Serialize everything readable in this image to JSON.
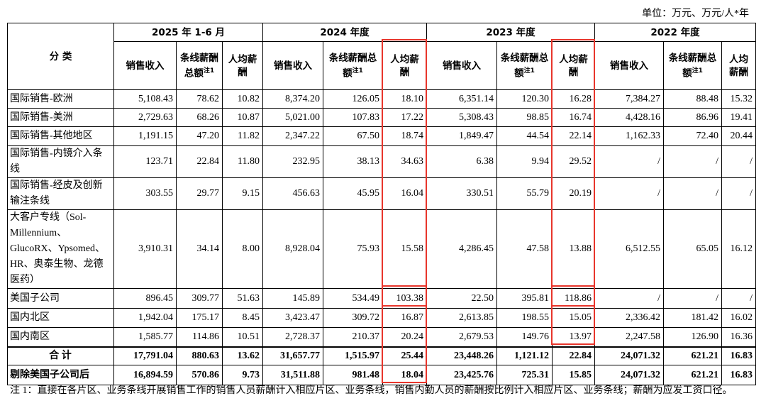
{
  "unit": "单位：万元、万元/人*年",
  "header": {
    "category": "分  类",
    "groups": [
      {
        "title": "2025 年 1-6 月",
        "cols": [
          "销售收入",
          "条线薪酬总额",
          "人均薪酬"
        ],
        "note": "注1"
      },
      {
        "title": "2024 年度",
        "cols": [
          "销售收入",
          "条线薪酬总额",
          "人均薪酬"
        ],
        "note": "注1"
      },
      {
        "title": "2023 年度",
        "cols": [
          "销售收入",
          "条线薪酬总额",
          "人均薪酬"
        ],
        "note": "注1"
      },
      {
        "title": "2022 年度",
        "cols": [
          "销售收入",
          "条线薪酬总额",
          "人均薪酬"
        ],
        "note": "注1"
      }
    ]
  },
  "table": {
    "rows": [
      [
        "国际销售-欧洲",
        "5,108.43",
        "78.62",
        "10.82",
        "8,374.20",
        "126.05",
        "18.10",
        "6,351.14",
        "120.30",
        "16.28",
        "7,384.27",
        "88.48",
        "15.32"
      ],
      [
        "国际销售-美洲",
        "2,729.63",
        "68.26",
        "10.87",
        "5,021.00",
        "107.83",
        "17.22",
        "5,308.43",
        "98.85",
        "16.74",
        "4,428.16",
        "86.96",
        "19.41"
      ],
      [
        "国际销售-其他地区",
        "1,191.15",
        "47.20",
        "11.82",
        "2,347.22",
        "67.50",
        "18.74",
        "1,849.47",
        "44.54",
        "22.14",
        "1,162.33",
        "72.40",
        "20.44"
      ],
      [
        "国际销售-内镜介入条线",
        "123.71",
        "22.84",
        "11.80",
        "232.95",
        "38.13",
        "34.63",
        "6.38",
        "9.94",
        "29.52",
        "/",
        "/",
        "/"
      ],
      [
        "国际销售-经皮及创新输注条线",
        "303.55",
        "29.77",
        "9.15",
        "456.63",
        "45.95",
        "16.04",
        "330.51",
        "55.79",
        "20.19",
        "/",
        "/",
        "/"
      ],
      [
        "大客户专线（Sol-Millennium、GlucoRX、Ypsomed、HR、奥泰生物、龙德医药）",
        "3,910.31",
        "34.14",
        "8.00",
        "8,928.04",
        "75.93",
        "15.58",
        "4,286.45",
        "47.58",
        "13.88",
        "6,512.55",
        "65.05",
        "16.12"
      ],
      [
        "美国子公司",
        "896.45",
        "309.77",
        "51.63",
        "145.89",
        "534.49",
        "103.38",
        "22.50",
        "395.81",
        "118.86",
        "/",
        "/",
        "/"
      ],
      [
        "国内北区",
        "1,942.04",
        "175.17",
        "8.45",
        "3,423.47",
        "309.72",
        "16.87",
        "2,613.85",
        "198.55",
        "15.05",
        "2,336.42",
        "181.42",
        "16.02"
      ],
      [
        "国内南区",
        "1,585.77",
        "114.86",
        "10.51",
        "2,728.37",
        "210.37",
        "20.24",
        "2,679.53",
        "149.76",
        "13.97",
        "2,247.58",
        "126.90",
        "16.36"
      ],
      [
        "合  计",
        "17,791.04",
        "880.63",
        "13.62",
        "31,657.77",
        "1,515.97",
        "25.44",
        "23,448.26",
        "1,121.12",
        "22.84",
        "24,071.32",
        "621.21",
        "16.83"
      ],
      [
        "剔除美国子公司后",
        "16,894.59",
        "570.86",
        "9.73",
        "31,511.88",
        "981.48",
        "18.04",
        "23,425.76",
        "725.31",
        "15.85",
        "24,071.32",
        "621.21",
        "16.83"
      ]
    ]
  },
  "footnote": "注 1：直接在各片区、业务条线开展销售工作的销售人员薪酬计入相应片区、业务条线，销售内勤人员的薪酬按比例计入相应片区、业务条线；薪酬为应发工资口径。"
}
